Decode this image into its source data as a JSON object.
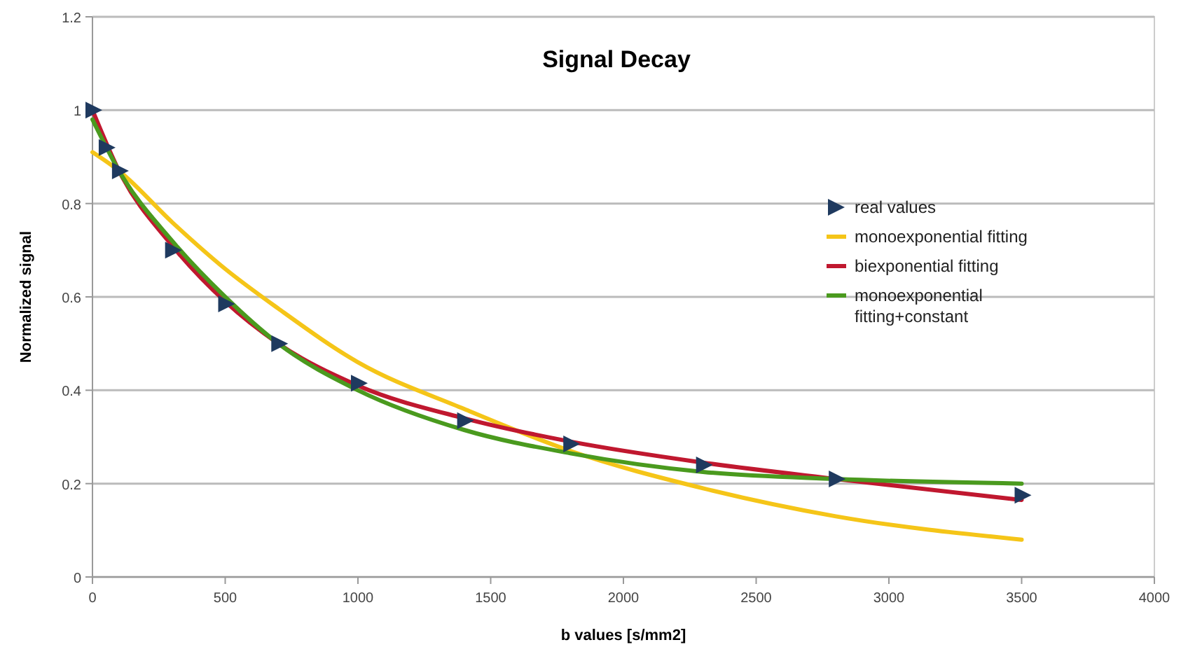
{
  "chart_data": {
    "type": "line",
    "title": "Signal Decay",
    "xlabel": "b values [s/mm2]",
    "ylabel": "Normalized signal",
    "xlim": [
      0,
      4000
    ],
    "xticks": [
      0,
      500,
      1000,
      1500,
      2000,
      2500,
      3000,
      3500,
      4000
    ],
    "ylim": [
      0,
      1.2
    ],
    "yticks": [
      0,
      0.2,
      0.4,
      0.6,
      0.8,
      1,
      1.2
    ],
    "grid": "y",
    "legend": "right",
    "series": [
      {
        "name": "real values",
        "type": "scatter",
        "marker": "triangle",
        "color": "#1f3a5f",
        "x": [
          0,
          50,
          100,
          300,
          500,
          700,
          1000,
          1400,
          1800,
          2300,
          2800,
          3500
        ],
        "values": [
          1,
          0.92,
          0.87,
          0.7,
          0.585,
          0.5,
          0.415,
          0.335,
          0.285,
          0.24,
          0.21,
          0.175
        ]
      },
      {
        "name": "monoexponential fitting",
        "color": "#f5c518",
        "x": [
          0,
          100,
          300,
          500,
          700,
          1000,
          1400,
          1800,
          2300,
          2800,
          3500
        ],
        "values": [
          0.91,
          0.87,
          0.76,
          0.66,
          0.575,
          0.46,
          0.36,
          0.27,
          0.19,
          0.13,
          0.08
        ]
      },
      {
        "name": "biexponential fitting",
        "color": "#c0182f",
        "x": [
          0,
          100,
          300,
          500,
          700,
          1000,
          1400,
          1800,
          2300,
          2800,
          3500
        ],
        "values": [
          1,
          0.87,
          0.71,
          0.59,
          0.5,
          0.41,
          0.34,
          0.29,
          0.245,
          0.21,
          0.165
        ]
      },
      {
        "name": "monoexponential fitting+constant",
        "color": "#4a9a1e",
        "x": [
          0,
          100,
          300,
          500,
          700,
          1000,
          1400,
          1800,
          2300,
          2800,
          3500
        ],
        "values": [
          0.98,
          0.87,
          0.72,
          0.6,
          0.5,
          0.4,
          0.315,
          0.265,
          0.225,
          0.21,
          0.2
        ]
      }
    ]
  }
}
